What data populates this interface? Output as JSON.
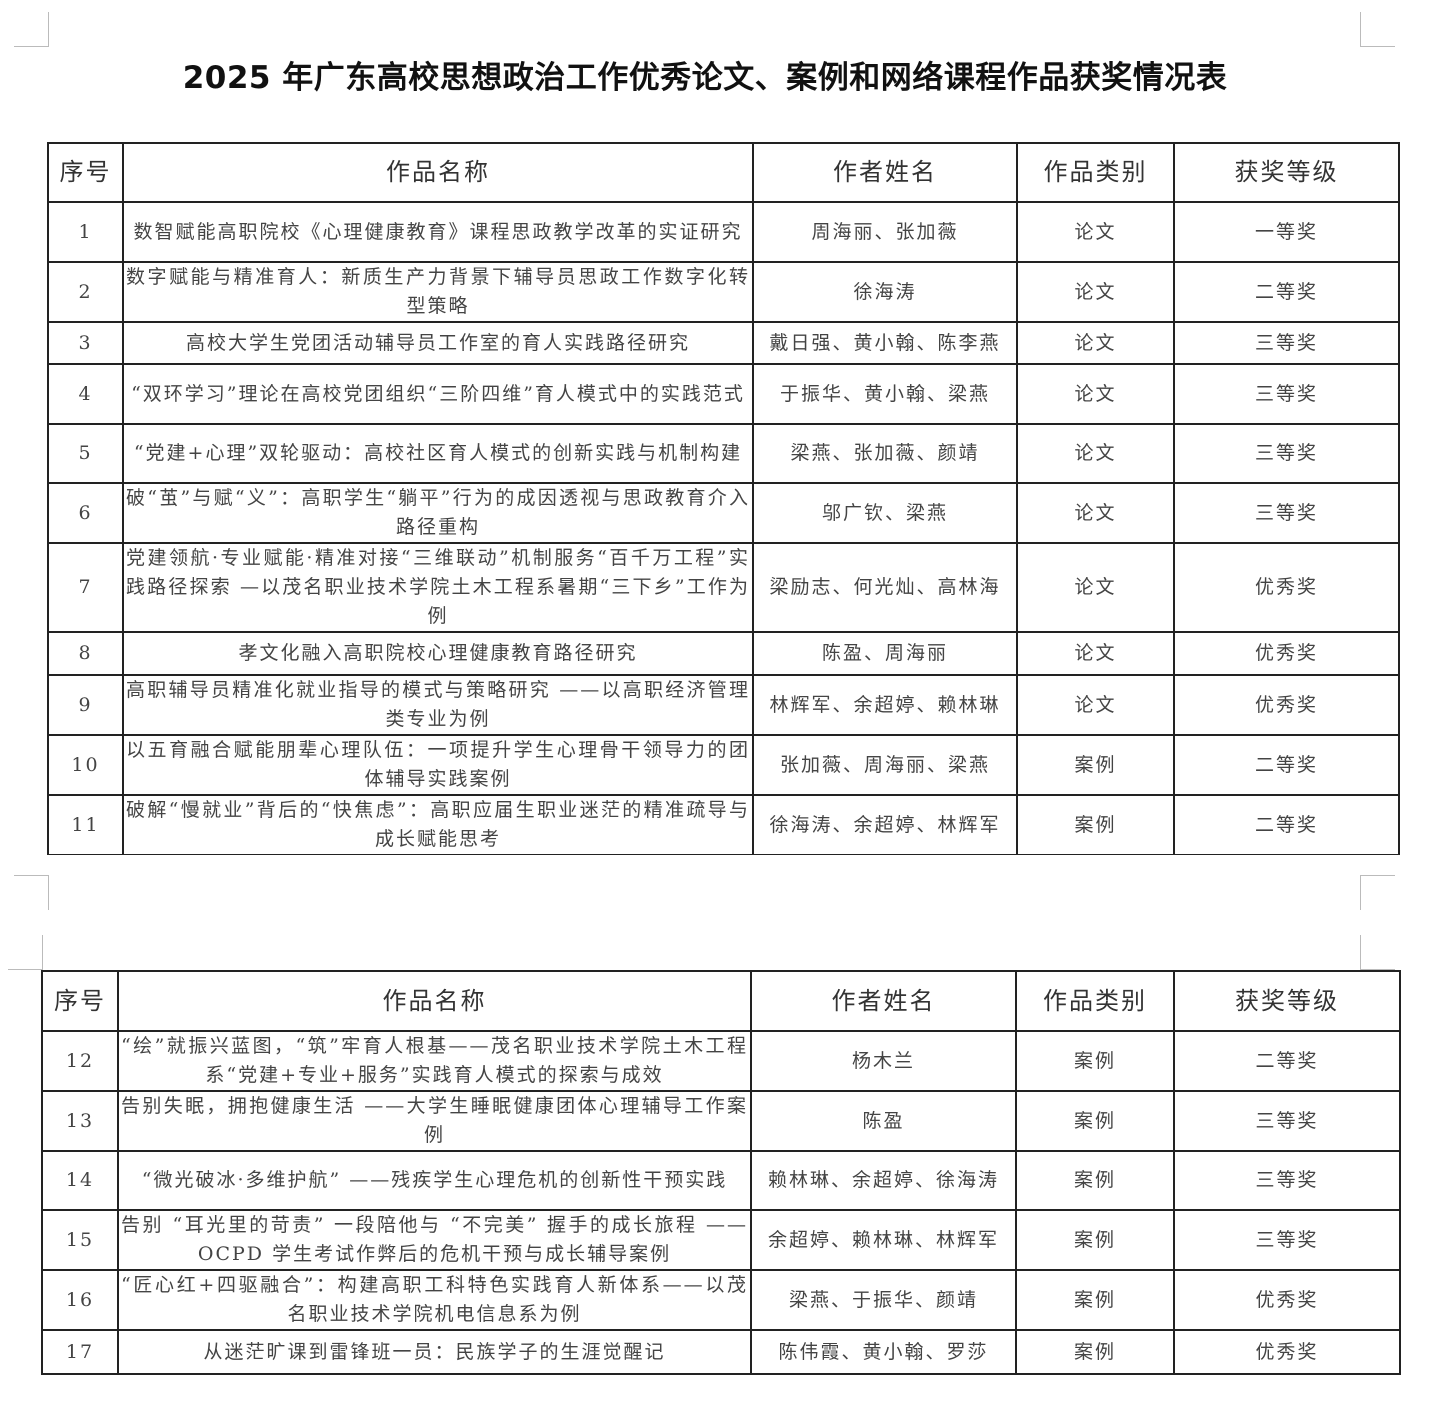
{
  "title": "2025 年广东高校思想政治工作优秀论文、案例和网络课程作品获奖情况表",
  "headers": [
    "序号",
    "作品名称",
    "作者姓名",
    "作品类别",
    "获奖等级"
  ],
  "page1_rows": [
    [
      "1",
      "数智赋能高职院校《心理健康教育》课程思政教学改革的实证研究",
      "周海丽、张加薇",
      "论文",
      "一等奖"
    ],
    [
      "2",
      "数字赋能与精准育人：新质生产力背景下辅导员思政工作数字化转型策略",
      "徐海涛",
      "论文",
      "二等奖"
    ],
    [
      "3",
      "高校大学生党团活动辅导员工作室的育人实践路径研究",
      "戴日强、黄小翰、陈李燕",
      "论文",
      "三等奖"
    ],
    [
      "4",
      "“双环学习”理论在高校党团组织“三阶四维”育人模式中的实践范式",
      "于振华、黄小翰、梁燕",
      "论文",
      "三等奖"
    ],
    [
      "5",
      "“党建+心理”双轮驱动：高校社区育人模式的创新实践与机制构建",
      "梁燕、张加薇、颜靖",
      "论文",
      "三等奖"
    ],
    [
      "6",
      "破“茧”与赋“义”：高职学生“躺平”行为的成因透视与思政教育介入路径重构",
      "邬广钦、梁燕",
      "论文",
      "三等奖"
    ],
    [
      "7",
      "党建领航·专业赋能·精准对接“三维联动”机制服务“百千万工程”实践路径探索 —以茂名职业技术学院土木工程系暑期“三下乡”工作为例",
      "梁励志、何光灿、高林海",
      "论文",
      "优秀奖"
    ],
    [
      "8",
      "孝文化融入高职院校心理健康教育路径研究",
      "陈盈、周海丽",
      "论文",
      "优秀奖"
    ],
    [
      "9",
      "高职辅导员精准化就业指导的模式与策略研究 ——以高职经济管理类专业为例",
      "林辉军、余超婷、赖林琳",
      "论文",
      "优秀奖"
    ],
    [
      "10",
      "以五育融合赋能朋辈心理队伍：一项提升学生心理骨干领导力的团体辅导实践案例",
      "张加薇、周海丽、梁燕",
      "案例",
      "二等奖"
    ],
    [
      "11",
      "破解“慢就业”背后的“快焦虑”：高职应届生职业迷茫的精准疏导与成长赋能思考",
      "徐海涛、余超婷、林辉军",
      "案例",
      "二等奖"
    ]
  ],
  "page2_rows": [
    [
      "12",
      "“绘”就振兴蓝图，“筑”牢育人根基——茂名职业技术学院土木工程系“党建+专业+服务”实践育人模式的探索与成效",
      "杨木兰",
      "案例",
      "二等奖"
    ],
    [
      "13",
      "告别失眠，拥抱健康生活 ——大学生睡眠健康团体心理辅导工作案例",
      "陈盈",
      "案例",
      "三等奖"
    ],
    [
      "14",
      "“微光破冰·多维护航” ——残疾学生心理危机的创新性干预实践",
      "赖林琳、余超婷、徐海涛",
      "案例",
      "三等奖"
    ],
    [
      "15",
      "告别 “耳光里的苛责” 一段陪他与 “不完美” 握手的成长旅程 ——OCPD 学生考试作弊后的危机干预与成长辅导案例",
      "余超婷、赖林琳、林辉军",
      "案例",
      "三等奖"
    ],
    [
      "16",
      "“匠心红+四驱融合”：构建高职工科特色实践育人新体系——以茂名职业技术学院机电信息系为例",
      "梁燕、于振华、颜靖",
      "案例",
      "优秀奖"
    ],
    [
      "17",
      "从迷茫旷课到雷锋班一员：民族学子的生涯觉醒记",
      "陈伟霞、黄小翰、罗莎",
      "案例",
      "优秀奖"
    ]
  ]
}
